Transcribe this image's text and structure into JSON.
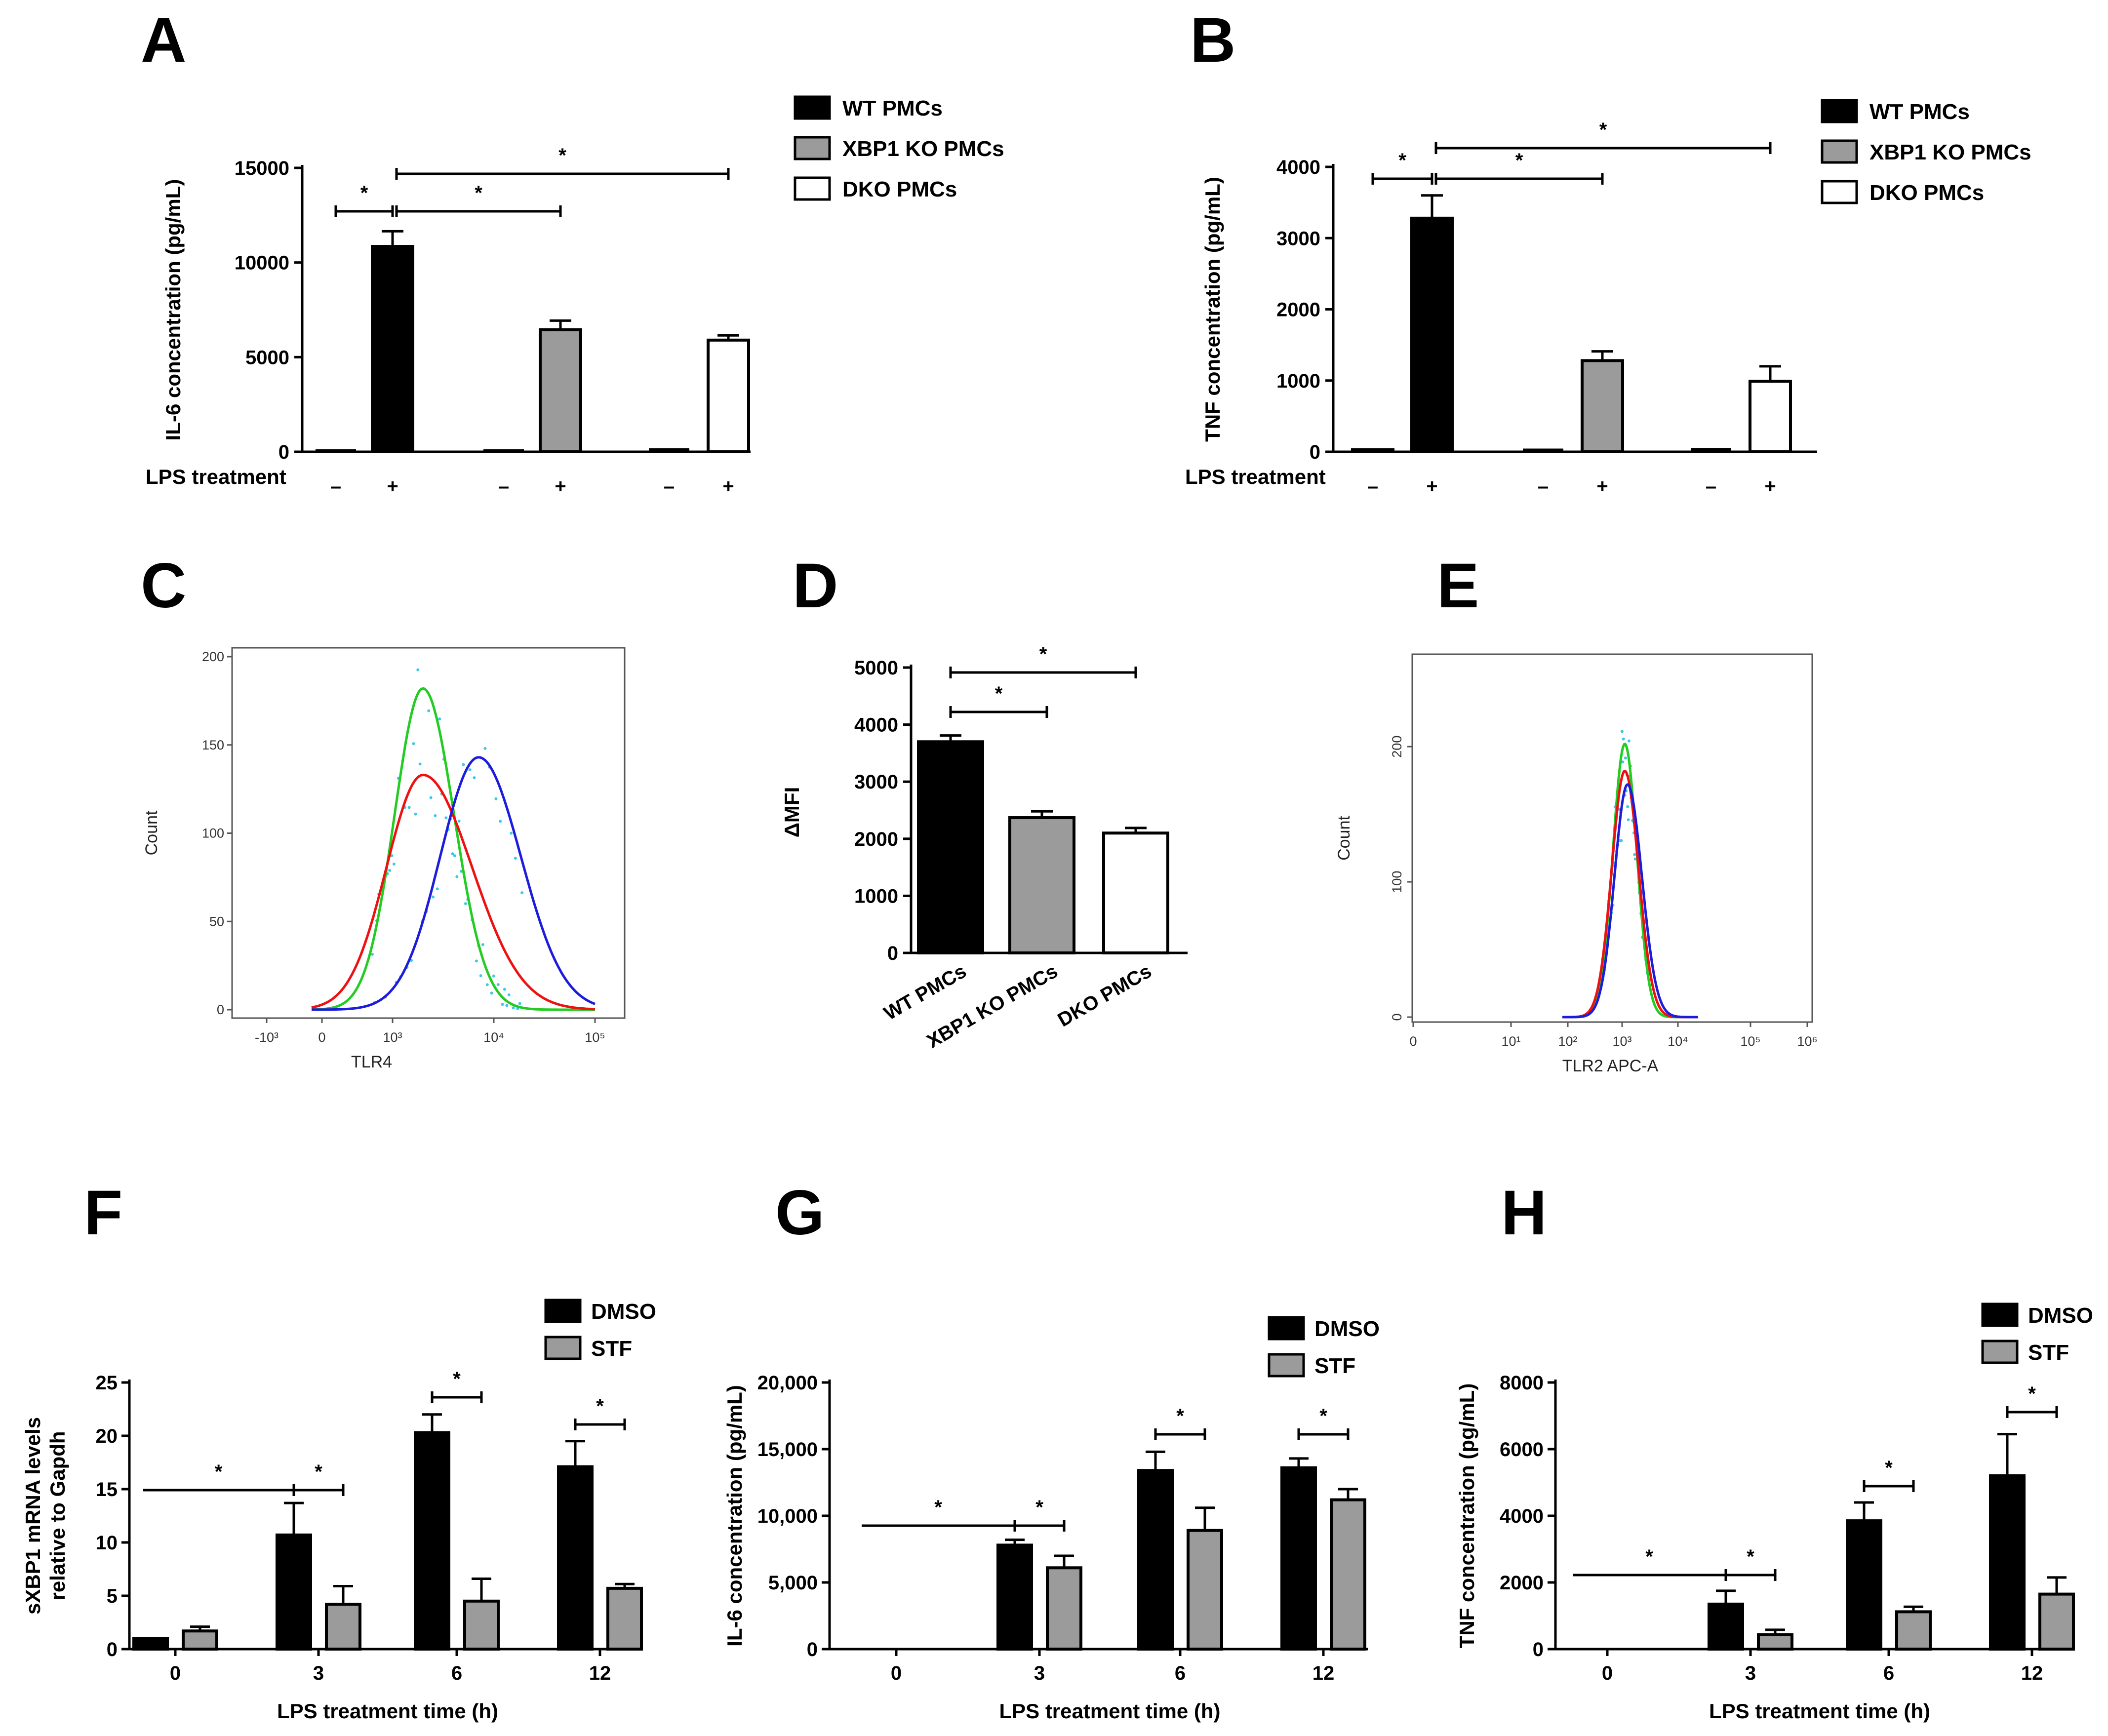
{
  "colors": {
    "wt": "#000000",
    "ko": "#9b9b9b",
    "dko": "#ffffff",
    "dmso": "#000000",
    "stf": "#9b9b9b",
    "flow_green": "#22cc22",
    "flow_red": "#ee1111",
    "flow_blue": "#1c1cdd",
    "flow_dots": "#3cc8e6"
  },
  "chart_data": [
    {
      "panel": "A",
      "type": "bar",
      "ylabel": "IL-6 concentration (pg/mL)",
      "ylim": [
        0,
        15000
      ],
      "yticks": [
        "0",
        "5000",
        "10000",
        "15000"
      ],
      "xrow_label": "LPS treatment",
      "xticks": [
        "–",
        "+",
        "–",
        "+",
        "–",
        "+"
      ],
      "legend": [
        "WT PMCs",
        "XBP1 KO PMCs",
        "DKO PMCs"
      ],
      "bars": [
        {
          "group": "WT PMCs",
          "lps": "–",
          "value": 0,
          "err": 0
        },
        {
          "group": "WT PMCs",
          "lps": "+",
          "value": 10850,
          "err": 800
        },
        {
          "group": "XBP1 KO PMCs",
          "lps": "–",
          "value": 0,
          "err": 0
        },
        {
          "group": "XBP1 KO PMCs",
          "lps": "+",
          "value": 6450,
          "err": 480
        },
        {
          "group": "DKO PMCs",
          "lps": "–",
          "value": 60,
          "err": 0
        },
        {
          "group": "DKO PMCs",
          "lps": "+",
          "value": 5900,
          "err": 250
        }
      ],
      "significance": [
        {
          "from": 0,
          "to": 1,
          "label": "*"
        },
        {
          "from": 1,
          "to": 3,
          "label": "*"
        },
        {
          "from": 1,
          "to": 5,
          "label": "*"
        }
      ]
    },
    {
      "panel": "B",
      "type": "bar",
      "ylabel": "TNF concentration (pg/mL)",
      "ylim": [
        0,
        4000
      ],
      "yticks": [
        "0",
        "1000",
        "2000",
        "3000",
        "4000"
      ],
      "xrow_label": "LPS treatment",
      "xticks": [
        "–",
        "+",
        "–",
        "+",
        "–",
        "+"
      ],
      "legend": [
        "WT PMCs",
        "XBP1 KO PMCs",
        "DKO PMCs"
      ],
      "bars": [
        {
          "group": "WT PMCs",
          "lps": "–",
          "value": 30,
          "err": 0
        },
        {
          "group": "WT PMCs",
          "lps": "+",
          "value": 3280,
          "err": 320
        },
        {
          "group": "XBP1 KO PMCs",
          "lps": "–",
          "value": 10,
          "err": 0
        },
        {
          "group": "XBP1 KO PMCs",
          "lps": "+",
          "value": 1280,
          "err": 130
        },
        {
          "group": "DKO PMCs",
          "lps": "–",
          "value": 20,
          "err": 0
        },
        {
          "group": "DKO PMCs",
          "lps": "+",
          "value": 990,
          "err": 210
        }
      ],
      "significance": [
        {
          "from": 0,
          "to": 1,
          "label": "*"
        },
        {
          "from": 1,
          "to": 3,
          "label": "*"
        },
        {
          "from": 1,
          "to": 5,
          "label": "*"
        }
      ]
    },
    {
      "panel": "C",
      "type": "line",
      "xlabel": "TLR4",
      "ylabel": "Count",
      "ylim": [
        0,
        200
      ],
      "xticks": [
        "-10³",
        "0",
        "10³",
        "10⁴",
        "10⁵"
      ],
      "yticks": [
        "0",
        "50",
        "100",
        "150",
        "200"
      ],
      "series": [
        {
          "color": "green",
          "peak_x": 3.3,
          "peak_y": 182
        },
        {
          "color": "red",
          "peak_x": 3.3,
          "peak_y": 133
        },
        {
          "color": "blue",
          "peak_x": 3.85,
          "peak_y": 143
        }
      ]
    },
    {
      "panel": "D",
      "type": "bar",
      "ylabel": "ΔMFI",
      "ylim": [
        0,
        5000
      ],
      "yticks": [
        "0",
        "1000",
        "2000",
        "3000",
        "4000",
        "5000"
      ],
      "categories": [
        "WT PMCs",
        "XBP1 KO PMCs",
        "DKO PMCs"
      ],
      "values": [
        3700,
        2370,
        2100
      ],
      "errors": [
        110,
        110,
        90
      ],
      "significance": [
        {
          "from": 0,
          "to": 1,
          "label": "*"
        },
        {
          "from": 0,
          "to": 2,
          "label": "*"
        }
      ]
    },
    {
      "panel": "E",
      "type": "line",
      "xlabel": "TLR2 APC-A",
      "ylabel": "Count",
      "ylim": [
        0,
        230
      ],
      "xticks": [
        "0",
        "10¹",
        "10²",
        "10³",
        "10⁴",
        "10⁵",
        "10⁶"
      ],
      "yticks": [
        "0",
        "100",
        "200"
      ],
      "series": [
        {
          "color": "green",
          "peak_x": 3.05,
          "peak_y": 202
        },
        {
          "color": "red",
          "peak_x": 3.05,
          "peak_y": 182
        },
        {
          "color": "blue",
          "peak_x": 3.1,
          "peak_y": 172
        }
      ]
    },
    {
      "panel": "F",
      "type": "bar",
      "xlabel": "LPS treatment time (h)",
      "ylabel_lines": [
        "sXBP1 mRNA levels",
        "relative to Gapdh"
      ],
      "ylim": [
        0,
        25
      ],
      "yticks": [
        "0",
        "5",
        "10",
        "15",
        "20",
        "25"
      ],
      "categories": [
        "0",
        "3",
        "6",
        "12"
      ],
      "legend": [
        "DMSO",
        "STF"
      ],
      "series": [
        {
          "name": "DMSO",
          "values": [
            1.0,
            10.7,
            20.3,
            17.1
          ],
          "errors": [
            0,
            3.0,
            1.7,
            2.4
          ]
        },
        {
          "name": "STF",
          "values": [
            1.7,
            4.2,
            4.5,
            5.7
          ],
          "errors": [
            0.4,
            1.7,
            2.1,
            0.4
          ]
        }
      ],
      "significance": [
        {
          "from": [
            0,
            0
          ],
          "to": [
            1,
            0
          ],
          "label": "*"
        },
        {
          "from": [
            1,
            0
          ],
          "to": [
            1,
            1
          ],
          "label": "*"
        },
        {
          "from": [
            2,
            0
          ],
          "to": [
            2,
            1
          ],
          "label": "*"
        },
        {
          "from": [
            3,
            0
          ],
          "to": [
            3,
            1
          ],
          "label": "*"
        }
      ]
    },
    {
      "panel": "G",
      "type": "bar",
      "xlabel": "LPS treatment time (h)",
      "ylabel": "IL-6 concentration (pg/mL)",
      "ylim": [
        0,
        20000
      ],
      "yticks": [
        "0",
        "5,000",
        "10,000",
        "15,000",
        "20,000"
      ],
      "categories": [
        "0",
        "3",
        "6",
        "12"
      ],
      "legend": [
        "DMSO",
        "STF"
      ],
      "series": [
        {
          "name": "DMSO",
          "values": [
            0,
            7800,
            13400,
            13600
          ],
          "errors": [
            0,
            400,
            1400,
            700
          ]
        },
        {
          "name": "STF",
          "values": [
            0,
            6100,
            8900,
            11200
          ],
          "errors": [
            0,
            900,
            1700,
            800
          ]
        }
      ],
      "significance": [
        {
          "from": [
            0,
            0
          ],
          "to": [
            1,
            0
          ],
          "label": "*"
        },
        {
          "from": [
            1,
            0
          ],
          "to": [
            1,
            1
          ],
          "label": "*"
        },
        {
          "from": [
            2,
            0
          ],
          "to": [
            2,
            1
          ],
          "label": "*"
        },
        {
          "from": [
            3,
            0
          ],
          "to": [
            3,
            1
          ],
          "label": "*"
        }
      ]
    },
    {
      "panel": "H",
      "type": "bar",
      "xlabel": "LPS treatment time (h)",
      "ylabel": "TNF concentration (pg/mL)",
      "ylim": [
        0,
        8000
      ],
      "yticks": [
        "0",
        "2000",
        "4000",
        "6000",
        "8000"
      ],
      "categories": [
        "0",
        "3",
        "6",
        "12"
      ],
      "legend": [
        "DMSO",
        "STF"
      ],
      "series": [
        {
          "name": "DMSO",
          "values": [
            0,
            1350,
            3850,
            5200
          ],
          "errors": [
            0,
            400,
            550,
            1250
          ]
        },
        {
          "name": "STF",
          "values": [
            0,
            430,
            1120,
            1650
          ],
          "errors": [
            0,
            150,
            150,
            500
          ]
        }
      ],
      "significance": [
        {
          "from": [
            0,
            0
          ],
          "to": [
            1,
            0
          ],
          "label": "*"
        },
        {
          "from": [
            1,
            0
          ],
          "to": [
            1,
            1
          ],
          "label": "*"
        },
        {
          "from": [
            2,
            0
          ],
          "to": [
            2,
            1
          ],
          "label": "*"
        },
        {
          "from": [
            3,
            0
          ],
          "to": [
            3,
            1
          ],
          "label": "*"
        }
      ]
    }
  ]
}
